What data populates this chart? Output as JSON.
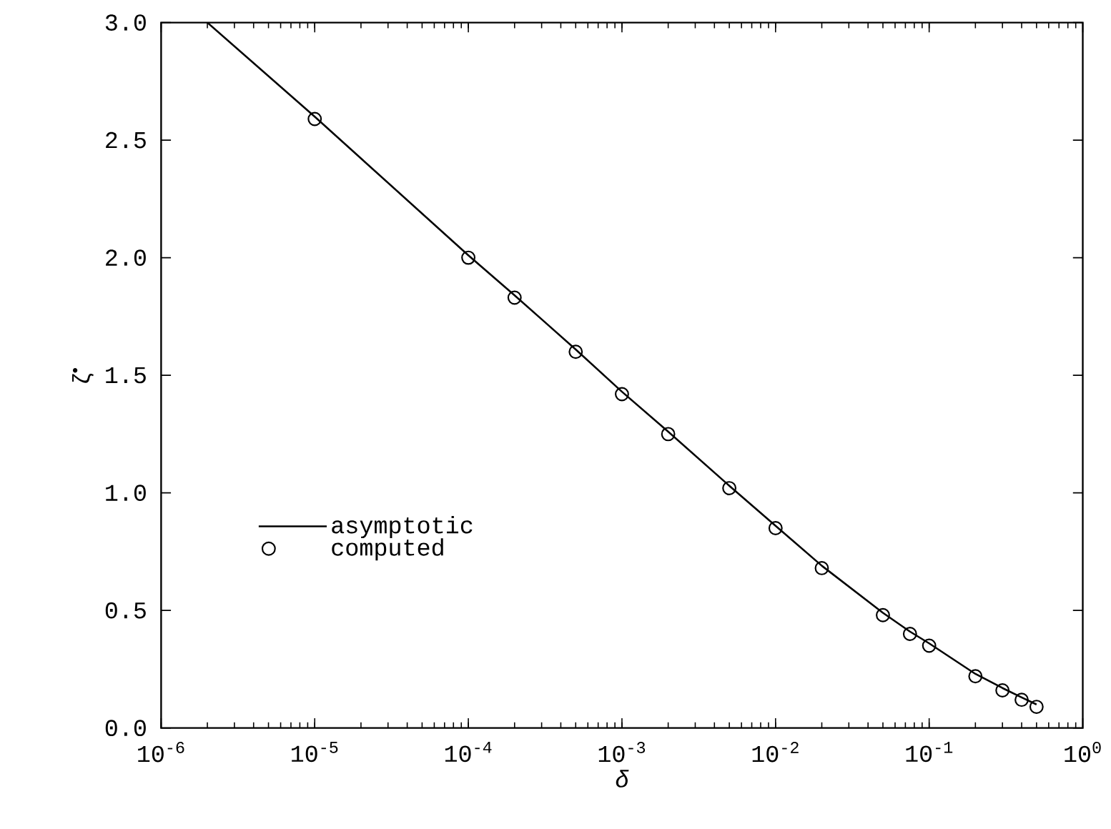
{
  "chart_data": {
    "type": "scatter",
    "xlabel": "δ",
    "ylabel": "ζ$^{•}$",
    "log": "x",
    "series": [
      {
        "name": "asymptotic",
        "type": "line",
        "color": "#000000",
        "marker": "none",
        "line_style": "solid",
        "x": [
          2e-06,
          1e-05,
          0.0001,
          0.0002,
          0.0005,
          0.001,
          0.002,
          0.005,
          0.01,
          0.02,
          0.05,
          0.075,
          0.1,
          0.2,
          0.3,
          0.4,
          0.5
        ],
        "values": [
          3.0,
          2.6,
          2.01,
          1.84,
          1.61,
          1.43,
          1.26,
          1.03,
          0.86,
          0.69,
          0.49,
          0.41,
          0.36,
          0.23,
          0.17,
          0.13,
          0.1
        ]
      },
      {
        "name": "computed",
        "color": "#000000",
        "marker": "circle",
        "x": [
          1e-05,
          0.0001,
          0.0002,
          0.0005,
          0.001,
          0.002,
          0.005,
          0.01,
          0.02,
          0.05,
          0.075,
          0.1,
          0.2,
          0.3,
          0.4,
          0.5
        ],
        "values": [
          2.59,
          2.0,
          1.83,
          1.6,
          1.42,
          1.25,
          1.02,
          0.85,
          0.68,
          0.48,
          0.4,
          0.35,
          0.22,
          0.16,
          0.12,
          0.09
        ]
      }
    ],
    "xlim": [
      1e-06,
      1
    ],
    "ylim": [
      0,
      3
    ],
    "xticks": [
      {
        "value": 1e-06,
        "label": "10$^{-6}$"
      },
      {
        "value": 1e-05,
        "label": "10$^{-5}$"
      },
      {
        "value": 0.0001,
        "label": "10$^{-4}$"
      },
      {
        "value": 0.001,
        "label": "10$^{-3}$"
      },
      {
        "value": 0.01,
        "label": "10$^{-2}$"
      },
      {
        "value": 0.1,
        "label": "10$^{-1}$"
      },
      {
        "value": 1,
        "label": "10$^{0}$"
      }
    ],
    "yticks": [
      {
        "value": 0,
        "label": "0.0"
      },
      0.5,
      {
        "value": 1,
        "label": "1.0"
      },
      1.5,
      {
        "value": 2,
        "label": "2.0"
      },
      2.5,
      {
        "value": 3,
        "label": "3.0"
      }
    ],
    "grid": false,
    "legend": "left"
  }
}
